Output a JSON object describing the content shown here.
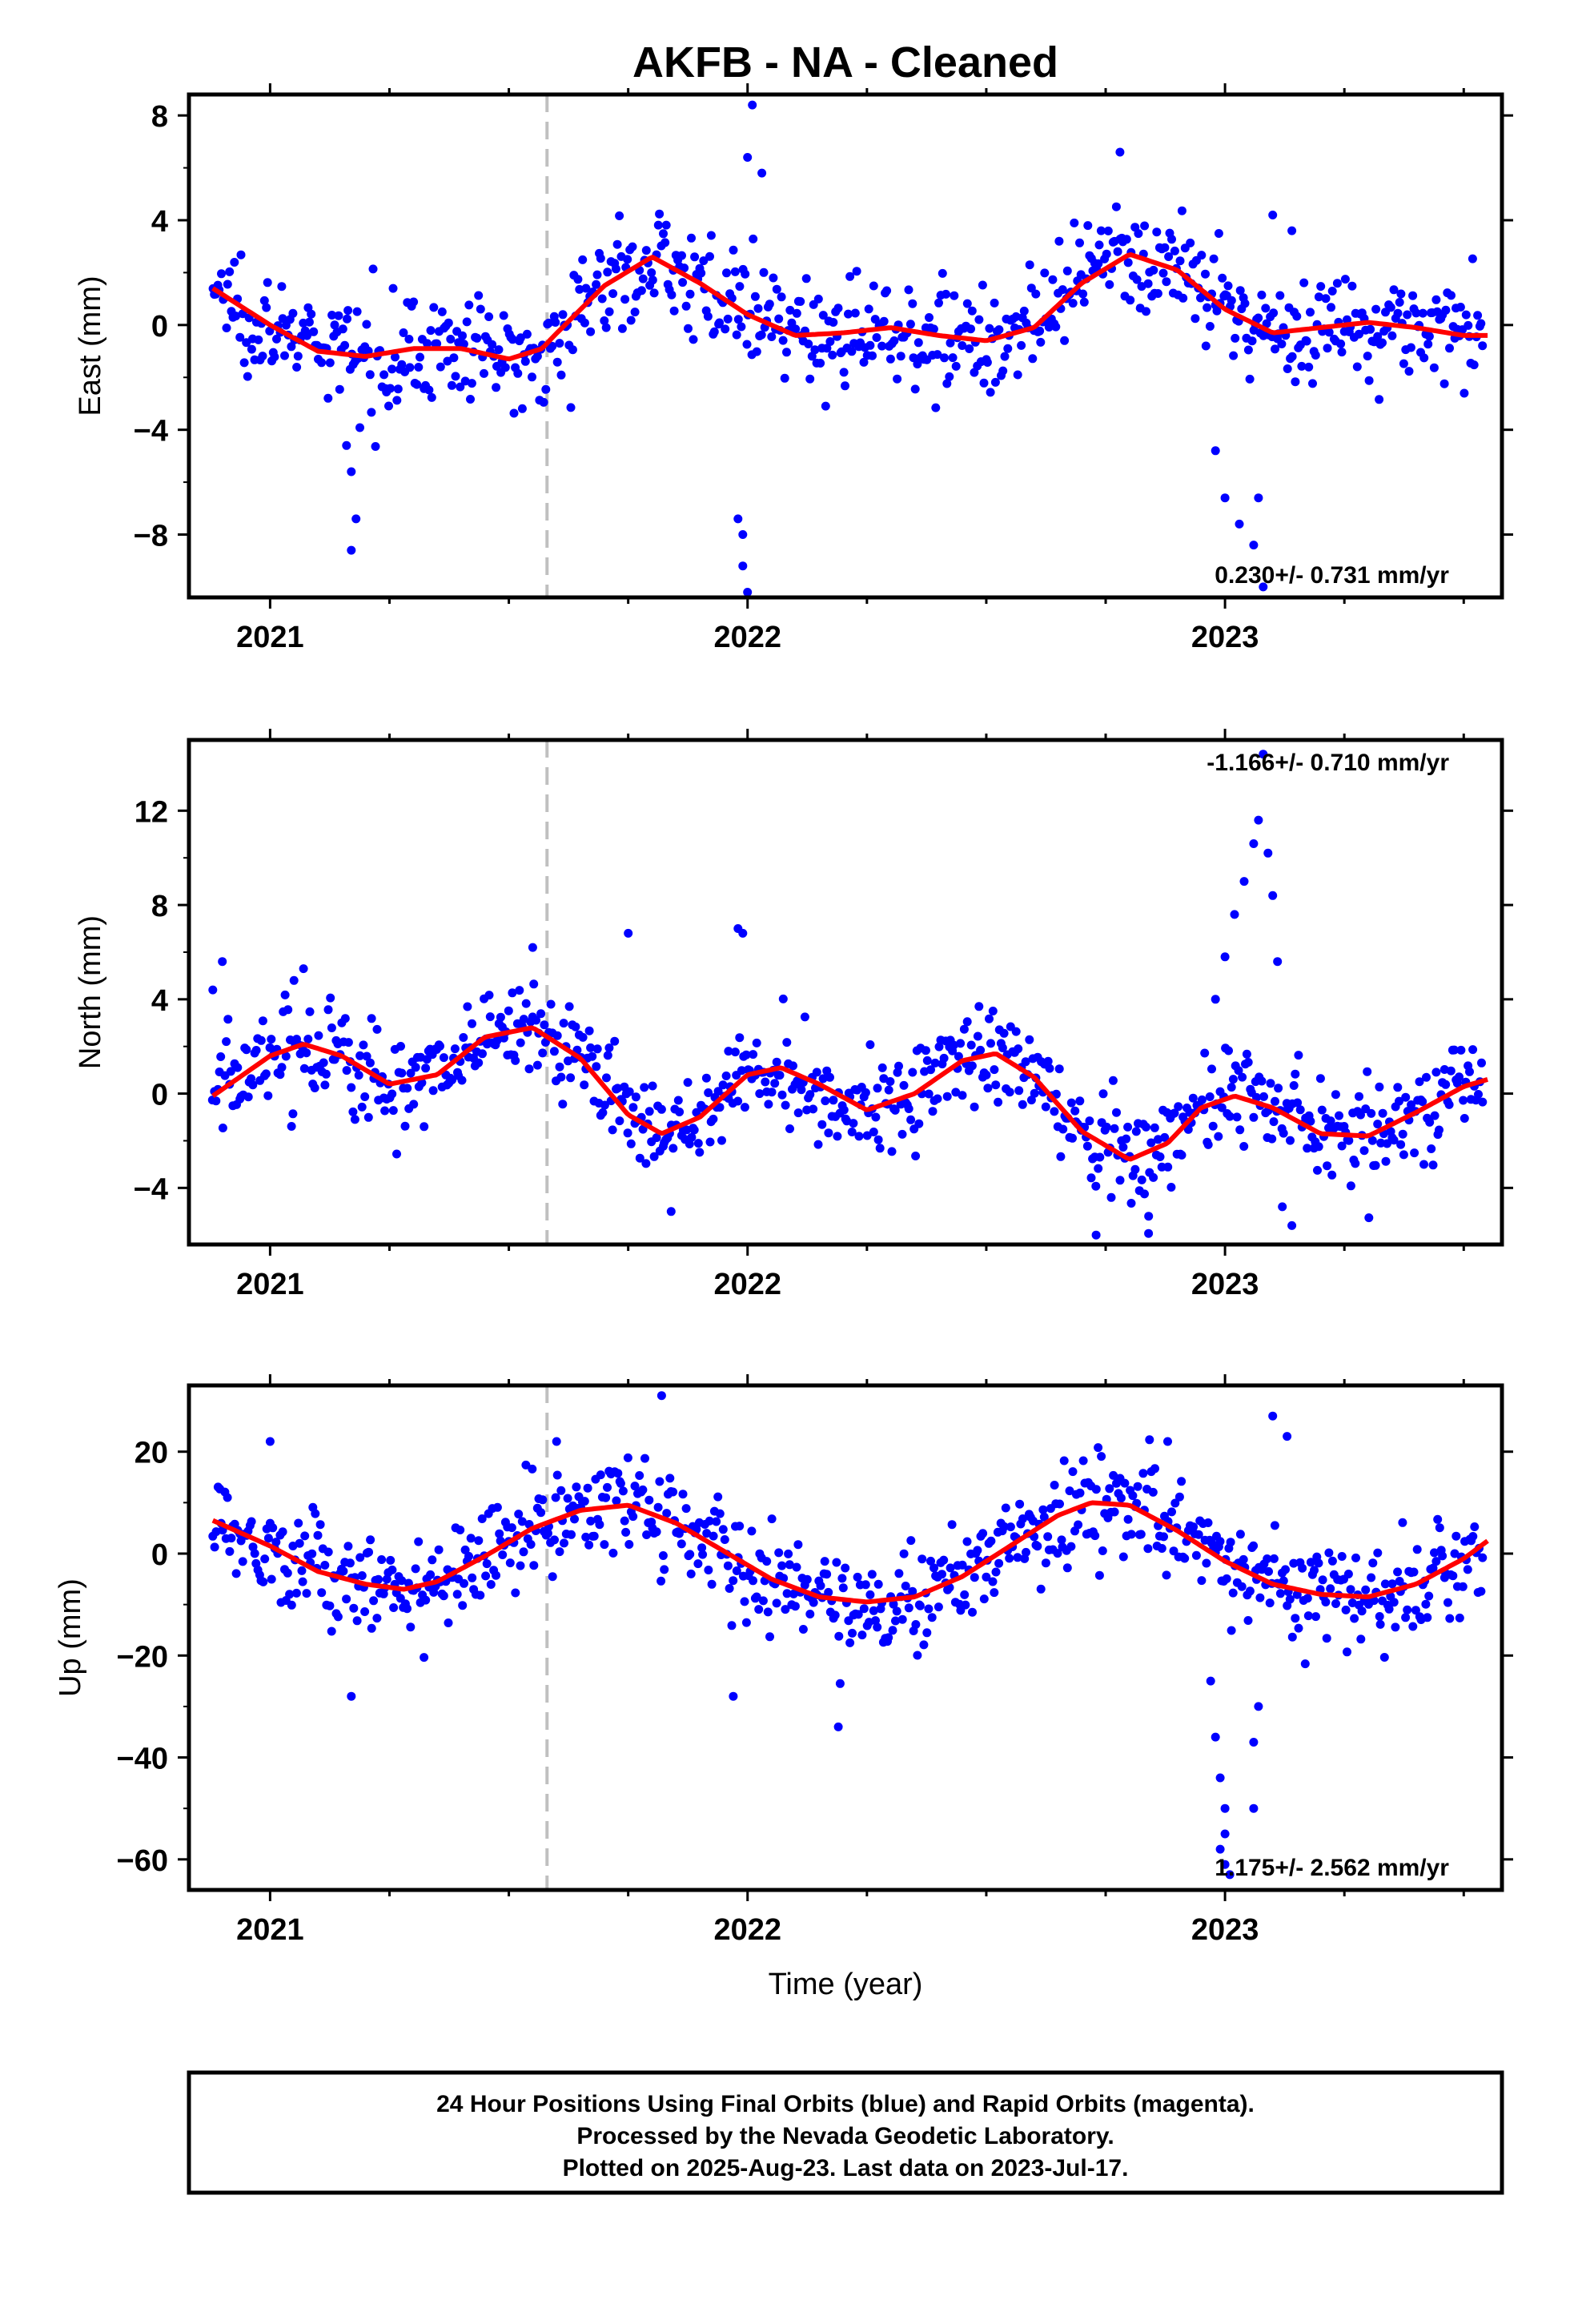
{
  "figure": {
    "title": "AKFB  - NA - Cleaned",
    "xlabel": "Time (year)",
    "colors": {
      "final_orbits": "#0000ff",
      "fit": "#ff0000",
      "break_line": "#c0c0c0",
      "frame": "#000000"
    },
    "footer": {
      "lines": [
        "24 Hour Positions Using Final Orbits (blue) and Rapid Orbits (magenta).",
        "Processed by the Nevada Geodetic Laboratory.",
        "Plotted on 2025-Aug-23. Last data on 2023-Jul-17."
      ]
    }
  },
  "chart_data": [
    {
      "type": "scatter",
      "name": "east",
      "ylabel": "East (mm)",
      "rate_text": "0.230+/- 0.731 mm/yr",
      "xlim": [
        2020.83,
        2023.58
      ],
      "ylim": [
        -10.4,
        8.8
      ],
      "yticks": [
        8,
        4,
        0,
        -4,
        -8
      ],
      "xticks": [
        "2021",
        "2022",
        "2023"
      ],
      "break_at": 2021.58,
      "fit": {
        "x": [
          2020.88,
          2021.0,
          2021.1,
          2021.2,
          2021.3,
          2021.4,
          2021.5,
          2021.57,
          2021.59,
          2021.7,
          2021.8,
          2021.9,
          2022.0,
          2022.1,
          2022.2,
          2022.3,
          2022.4,
          2022.5,
          2022.6,
          2022.7,
          2022.8,
          2022.9,
          2023.0,
          2023.1,
          2023.2,
          2023.3,
          2023.4,
          2023.5,
          2023.55
        ],
        "y": [
          1.4,
          0.0,
          -1.0,
          -1.2,
          -0.9,
          -0.9,
          -1.3,
          -0.9,
          -0.5,
          1.5,
          2.6,
          1.6,
          0.4,
          -0.4,
          -0.3,
          -0.1,
          -0.4,
          -0.6,
          -0.1,
          1.6,
          2.7,
          2.1,
          0.6,
          -0.3,
          -0.1,
          0.1,
          -0.1,
          -0.4,
          -0.4
        ]
      },
      "outliers": [
        {
          "x": 2021.16,
          "y": -4.6
        },
        {
          "x": 2021.17,
          "y": -5.6
        },
        {
          "x": 2021.18,
          "y": -7.4
        },
        {
          "x": 2021.17,
          "y": -8.6
        },
        {
          "x": 2021.98,
          "y": -7.4
        },
        {
          "x": 2021.99,
          "y": -8.0
        },
        {
          "x": 2021.99,
          "y": -9.2
        },
        {
          "x": 2022.0,
          "y": -10.2
        },
        {
          "x": 2022.01,
          "y": 8.4
        },
        {
          "x": 2022.0,
          "y": 6.4
        },
        {
          "x": 2022.03,
          "y": 5.8
        },
        {
          "x": 2022.78,
          "y": 6.6
        },
        {
          "x": 2022.98,
          "y": -4.8
        },
        {
          "x": 2023.0,
          "y": -6.6
        },
        {
          "x": 2023.03,
          "y": -7.6
        },
        {
          "x": 2023.06,
          "y": -8.4
        },
        {
          "x": 2023.08,
          "y": -10.0
        },
        {
          "x": 2023.07,
          "y": -6.6
        },
        {
          "x": 2023.1,
          "y": 4.2
        },
        {
          "x": 2023.14,
          "y": 3.6
        },
        {
          "x": 2022.96,
          "y": -0.8
        }
      ],
      "noise_sd": 1.0
    },
    {
      "type": "scatter",
      "name": "north",
      "ylabel": "North (mm)",
      "rate_text": "-1.166+/- 0.710 mm/yr",
      "xlim": [
        2020.83,
        2023.58
      ],
      "ylim": [
        -6.4,
        15.0
      ],
      "yticks": [
        12,
        8,
        4,
        0,
        -4
      ],
      "xticks": [
        "2021",
        "2022",
        "2023"
      ],
      "break_at": 2021.58,
      "fit": {
        "x": [
          2020.88,
          2021.0,
          2021.07,
          2021.15,
          2021.25,
          2021.35,
          2021.45,
          2021.55,
          2021.65,
          2021.75,
          2021.82,
          2021.9,
          2022.0,
          2022.07,
          2022.15,
          2022.25,
          2022.35,
          2022.45,
          2022.52,
          2022.6,
          2022.7,
          2022.8,
          2022.88,
          2022.95,
          2023.02,
          2023.1,
          2023.2,
          2023.3,
          2023.4,
          2023.5,
          2023.55
        ],
        "y": [
          -0.1,
          1.6,
          2.1,
          1.6,
          0.4,
          0.8,
          2.4,
          2.8,
          1.5,
          -0.9,
          -1.7,
          -1.0,
          0.8,
          1.1,
          0.4,
          -0.7,
          0.0,
          1.4,
          1.7,
          0.7,
          -1.6,
          -2.8,
          -2.1,
          -0.6,
          -0.1,
          -0.6,
          -1.7,
          -1.8,
          -0.8,
          0.3,
          0.6
        ]
      },
      "outliers": [
        {
          "x": 2021.05,
          "y": 4.8
        },
        {
          "x": 2021.07,
          "y": 5.3
        },
        {
          "x": 2021.75,
          "y": 6.8
        },
        {
          "x": 2021.55,
          "y": 6.2
        },
        {
          "x": 2021.98,
          "y": 7.0
        },
        {
          "x": 2021.99,
          "y": 6.8
        },
        {
          "x": 2021.96,
          "y": 1.8
        },
        {
          "x": 2020.88,
          "y": 4.4
        },
        {
          "x": 2020.9,
          "y": 5.6
        },
        {
          "x": 2022.98,
          "y": 4.0
        },
        {
          "x": 2023.0,
          "y": 5.8
        },
        {
          "x": 2023.02,
          "y": 7.6
        },
        {
          "x": 2023.04,
          "y": 9.0
        },
        {
          "x": 2023.06,
          "y": 10.6
        },
        {
          "x": 2023.07,
          "y": 11.6
        },
        {
          "x": 2023.09,
          "y": 10.2
        },
        {
          "x": 2023.1,
          "y": 8.4
        },
        {
          "x": 2023.08,
          "y": 14.4
        },
        {
          "x": 2023.11,
          "y": 5.6
        },
        {
          "x": 2023.14,
          "y": -5.6
        },
        {
          "x": 2023.12,
          "y": -4.8
        },
        {
          "x": 2022.73,
          "y": -6.0
        },
        {
          "x": 2022.84,
          "y": -5.2
        },
        {
          "x": 2021.84,
          "y": -5.0
        }
      ],
      "noise_sd": 1.1
    },
    {
      "type": "scatter",
      "name": "up",
      "ylabel": "Up (mm)",
      "rate_text": "1.175+/- 2.562 mm/yr",
      "xlim": [
        2020.83,
        2023.58
      ],
      "ylim": [
        -66,
        33
      ],
      "yticks": [
        20,
        0,
        -20,
        -40,
        -60
      ],
      "xticks": [
        "2021",
        "2022",
        "2023"
      ],
      "break_at": 2021.58,
      "fit": {
        "x": [
          2020.88,
          2021.0,
          2021.1,
          2021.2,
          2021.28,
          2021.35,
          2021.45,
          2021.55,
          2021.65,
          2021.75,
          2021.85,
          2021.95,
          2022.05,
          2022.15,
          2022.25,
          2022.35,
          2022.45,
          2022.55,
          2022.65,
          2022.72,
          2022.8,
          2022.9,
          2023.0,
          2023.1,
          2023.2,
          2023.3,
          2023.4,
          2023.5,
          2023.55
        ],
        "y": [
          6.5,
          1.5,
          -3.5,
          -6.0,
          -7.0,
          -5.5,
          -0.5,
          5.0,
          8.5,
          9.5,
          6.0,
          0.5,
          -5.0,
          -8.5,
          -9.5,
          -8.5,
          -4.5,
          1.5,
          7.5,
          10.0,
          9.5,
          4.5,
          -1.5,
          -6.0,
          -8.0,
          -8.5,
          -6.0,
          -1.0,
          2.5
        ]
      },
      "outliers": [
        {
          "x": 2021.82,
          "y": 31.0
        },
        {
          "x": 2021.17,
          "y": -28.0
        },
        {
          "x": 2021.97,
          "y": -28.0
        },
        {
          "x": 2022.19,
          "y": -34.0
        },
        {
          "x": 2022.97,
          "y": -25.0
        },
        {
          "x": 2022.98,
          "y": -36.0
        },
        {
          "x": 2022.99,
          "y": -44.0
        },
        {
          "x": 2023.0,
          "y": -50.0
        },
        {
          "x": 2023.0,
          "y": -55.0
        },
        {
          "x": 2022.99,
          "y": -58.0
        },
        {
          "x": 2023.0,
          "y": -61.0
        },
        {
          "x": 2023.01,
          "y": -63.0
        },
        {
          "x": 2023.06,
          "y": -37.0
        },
        {
          "x": 2023.07,
          "y": -30.0
        },
        {
          "x": 2023.06,
          "y": -50.0
        },
        {
          "x": 2023.1,
          "y": 27.0
        },
        {
          "x": 2023.13,
          "y": 23.0
        },
        {
          "x": 2022.88,
          "y": 22.0
        },
        {
          "x": 2021.0,
          "y": 22.0
        },
        {
          "x": 2021.6,
          "y": 22.0
        }
      ],
      "noise_sd": 5.0
    }
  ]
}
